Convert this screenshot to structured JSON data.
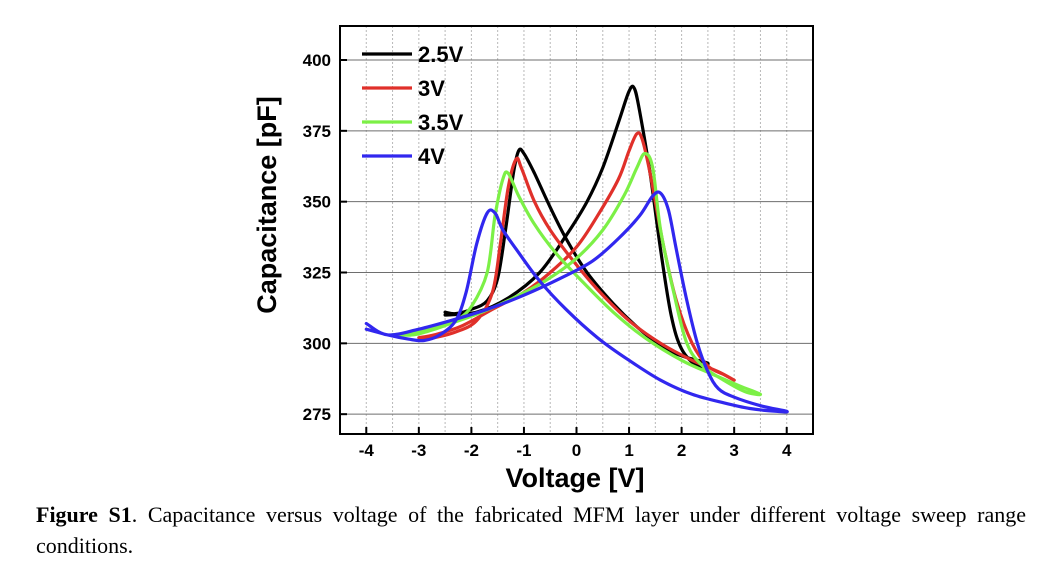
{
  "chart_data": {
    "type": "line",
    "xlabel": "Voltage [V]",
    "ylabel": "Capacitance [pF]",
    "xlim": [
      -4.5,
      4.5
    ],
    "ylim": [
      268,
      412
    ],
    "xticks": [
      "-4",
      "-3",
      "-2",
      "-1",
      "0",
      "1",
      "2",
      "3",
      "4"
    ],
    "yticks": [
      "275",
      "300",
      "325",
      "350",
      "375",
      "400"
    ],
    "grid": "on",
    "legend_position": "top-left",
    "series": [
      {
        "name": "2.5V",
        "color": "#000000",
        "points": [
          [
            -2.5,
            311
          ],
          [
            -2.3,
            310.5
          ],
          [
            -2.0,
            312
          ],
          [
            -1.7,
            315
          ],
          [
            -1.5,
            323
          ],
          [
            -1.35,
            340
          ],
          [
            -1.2,
            360
          ],
          [
            -1.1,
            368
          ],
          [
            -1.0,
            367
          ],
          [
            -0.8,
            360
          ],
          [
            -0.5,
            348
          ],
          [
            -0.2,
            337
          ],
          [
            0.2,
            325
          ],
          [
            0.7,
            314
          ],
          [
            1.2,
            305
          ],
          [
            1.7,
            298
          ],
          [
            2.1,
            295
          ],
          [
            2.5,
            293
          ],
          [
            2.3,
            292
          ],
          [
            2.0,
            298
          ],
          [
            1.8,
            310
          ],
          [
            1.6,
            333
          ],
          [
            1.4,
            360
          ],
          [
            1.2,
            382
          ],
          [
            1.1,
            390
          ],
          [
            1.0,
            389
          ],
          [
            0.8,
            378
          ],
          [
            0.5,
            362
          ],
          [
            0.2,
            350
          ],
          [
            -0.2,
            338
          ],
          [
            -0.7,
            325
          ],
          [
            -1.3,
            316
          ],
          [
            -1.9,
            311
          ],
          [
            -2.5,
            310
          ]
        ]
      },
      {
        "name": "3V",
        "color": "#e0302a",
        "points": [
          [
            -3.0,
            301
          ],
          [
            -2.7,
            302
          ],
          [
            -2.3,
            304
          ],
          [
            -1.9,
            308
          ],
          [
            -1.6,
            318
          ],
          [
            -1.45,
            335
          ],
          [
            -1.3,
            355
          ],
          [
            -1.15,
            365
          ],
          [
            -1.05,
            362
          ],
          [
            -0.8,
            350
          ],
          [
            -0.5,
            340
          ],
          [
            -0.1,
            330
          ],
          [
            0.4,
            319
          ],
          [
            1.0,
            308
          ],
          [
            1.6,
            300
          ],
          [
            2.2,
            294
          ],
          [
            2.7,
            290
          ],
          [
            3.0,
            287
          ],
          [
            2.8,
            289
          ],
          [
            2.5,
            292
          ],
          [
            2.2,
            300
          ],
          [
            1.9,
            315
          ],
          [
            1.65,
            335
          ],
          [
            1.4,
            360
          ],
          [
            1.25,
            372
          ],
          [
            1.15,
            374
          ],
          [
            1.0,
            368
          ],
          [
            0.8,
            358
          ],
          [
            0.4,
            345
          ],
          [
            0.0,
            334
          ],
          [
            -0.5,
            325
          ],
          [
            -1.0,
            318
          ],
          [
            -1.6,
            312
          ],
          [
            -2.2,
            306
          ],
          [
            -2.7,
            303
          ],
          [
            -3.0,
            302
          ]
        ]
      },
      {
        "name": "3.5V",
        "color": "#7cf046",
        "points": [
          [
            -3.5,
            303
          ],
          [
            -3.1,
            303
          ],
          [
            -2.7,
            305
          ],
          [
            -2.3,
            308
          ],
          [
            -2.0,
            313
          ],
          [
            -1.7,
            325
          ],
          [
            -1.55,
            345
          ],
          [
            -1.4,
            358
          ],
          [
            -1.3,
            360
          ],
          [
            -1.1,
            352
          ],
          [
            -0.8,
            342
          ],
          [
            -0.4,
            332
          ],
          [
            0.1,
            322
          ],
          [
            0.7,
            311
          ],
          [
            1.3,
            302
          ],
          [
            2.0,
            294
          ],
          [
            2.6,
            289
          ],
          [
            3.1,
            285
          ],
          [
            3.5,
            282
          ],
          [
            3.2,
            283
          ],
          [
            2.8,
            287
          ],
          [
            2.4,
            292
          ],
          [
            2.1,
            300
          ],
          [
            1.85,
            318
          ],
          [
            1.6,
            340
          ],
          [
            1.45,
            362
          ],
          [
            1.3,
            367
          ],
          [
            1.15,
            362
          ],
          [
            0.9,
            352
          ],
          [
            0.5,
            340
          ],
          [
            0.0,
            330
          ],
          [
            -0.6,
            322
          ],
          [
            -1.2,
            316
          ],
          [
            -1.8,
            311
          ],
          [
            -2.4,
            307
          ],
          [
            -3.0,
            304
          ],
          [
            -3.5,
            303
          ]
        ]
      },
      {
        "name": "4V",
        "color": "#3127ef",
        "points": [
          [
            -4.0,
            305
          ],
          [
            -3.6,
            303
          ],
          [
            -3.2,
            301.5
          ],
          [
            -2.9,
            301
          ],
          [
            -2.6,
            303
          ],
          [
            -2.3,
            308
          ],
          [
            -2.1,
            318
          ],
          [
            -1.9,
            335
          ],
          [
            -1.7,
            346
          ],
          [
            -1.55,
            346
          ],
          [
            -1.4,
            340
          ],
          [
            -1.1,
            332
          ],
          [
            -0.7,
            322
          ],
          [
            -0.2,
            312
          ],
          [
            0.4,
            302
          ],
          [
            1.0,
            294
          ],
          [
            1.6,
            287
          ],
          [
            2.2,
            282
          ],
          [
            2.8,
            279
          ],
          [
            3.3,
            277
          ],
          [
            3.8,
            276
          ],
          [
            4.0,
            276
          ],
          [
            3.5,
            278
          ],
          [
            3.0,
            281
          ],
          [
            2.7,
            284
          ],
          [
            2.5,
            290
          ],
          [
            2.3,
            300
          ],
          [
            2.1,
            315
          ],
          [
            1.9,
            333
          ],
          [
            1.75,
            347
          ],
          [
            1.6,
            353
          ],
          [
            1.45,
            352
          ],
          [
            1.2,
            345
          ],
          [
            0.8,
            337
          ],
          [
            0.3,
            329
          ],
          [
            -0.3,
            323
          ],
          [
            -1.0,
            317
          ],
          [
            -1.7,
            312
          ],
          [
            -2.4,
            308
          ],
          [
            -3.0,
            305
          ],
          [
            -3.6,
            303
          ],
          [
            -4.0,
            307
          ]
        ]
      }
    ]
  },
  "caption": {
    "label": "Figure S1",
    "text": ". Capacitance versus voltage of the fabricated MFM layer under different voltage sweep range conditions."
  }
}
